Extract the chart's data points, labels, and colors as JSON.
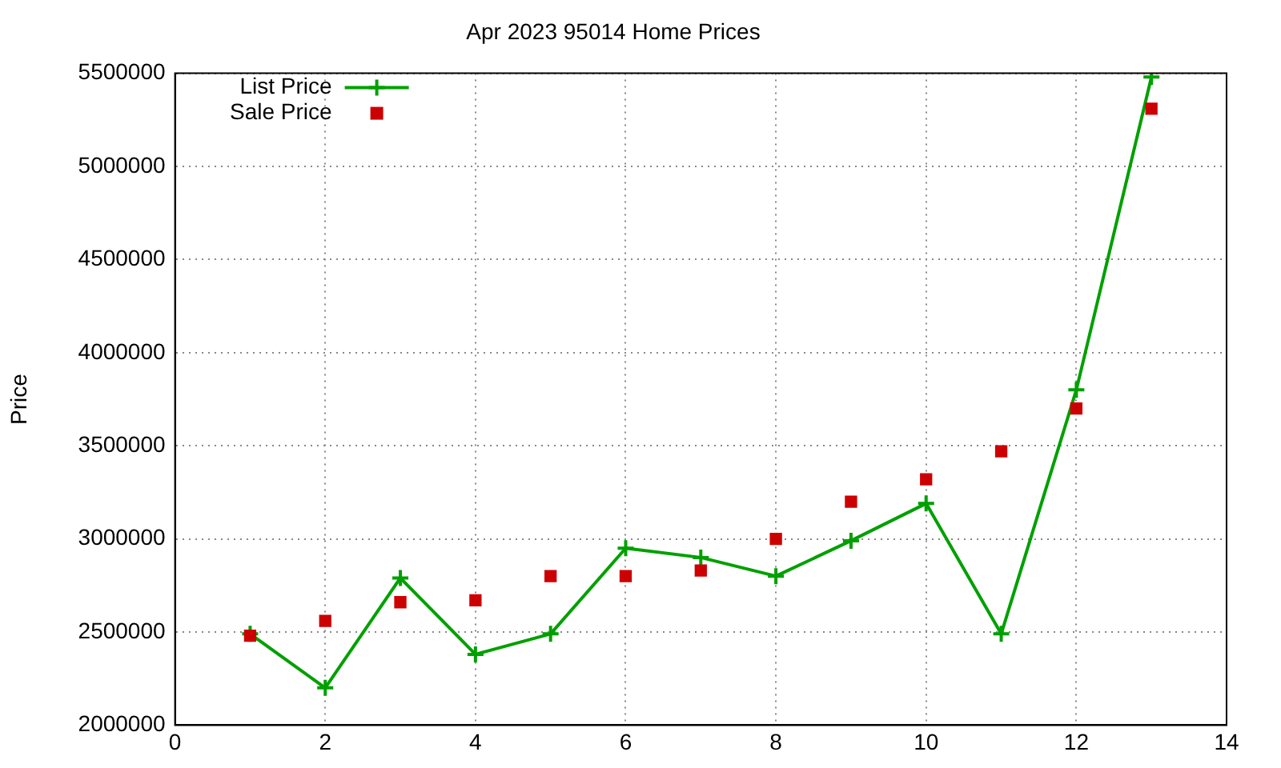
{
  "chart_data": {
    "type": "line",
    "title": "Apr 2023 95014 Home Prices",
    "ylabel": "Price",
    "x": [
      1,
      2,
      3,
      4,
      5,
      6,
      7,
      8,
      9,
      10,
      11,
      12,
      13
    ],
    "series": [
      {
        "name": "List Price",
        "type": "line",
        "color": "#00a000",
        "marker": "cross",
        "values": [
          2490000,
          2200000,
          2790000,
          2380000,
          2490000,
          2950000,
          2900000,
          2800000,
          2990000,
          3190000,
          2490000,
          3800000,
          5480000
        ]
      },
      {
        "name": "Sale Price",
        "type": "scatter",
        "color": "#cc0000",
        "marker": "square",
        "values": [
          2480000,
          2560000,
          2660000,
          2670000,
          2800000,
          2800000,
          2830000,
          3000000,
          3200000,
          3320000,
          3470000,
          3700000,
          5310000
        ]
      }
    ],
    "xlim": [
      0,
      14
    ],
    "xticks": [
      0,
      2,
      4,
      6,
      8,
      10,
      12,
      14
    ],
    "ylim": [
      2000000,
      5500000
    ],
    "yticks": [
      2000000,
      2500000,
      3000000,
      3500000,
      4000000,
      4500000,
      5000000,
      5500000
    ],
    "grid": true,
    "legend": "top left",
    "line_style": "solid"
  }
}
